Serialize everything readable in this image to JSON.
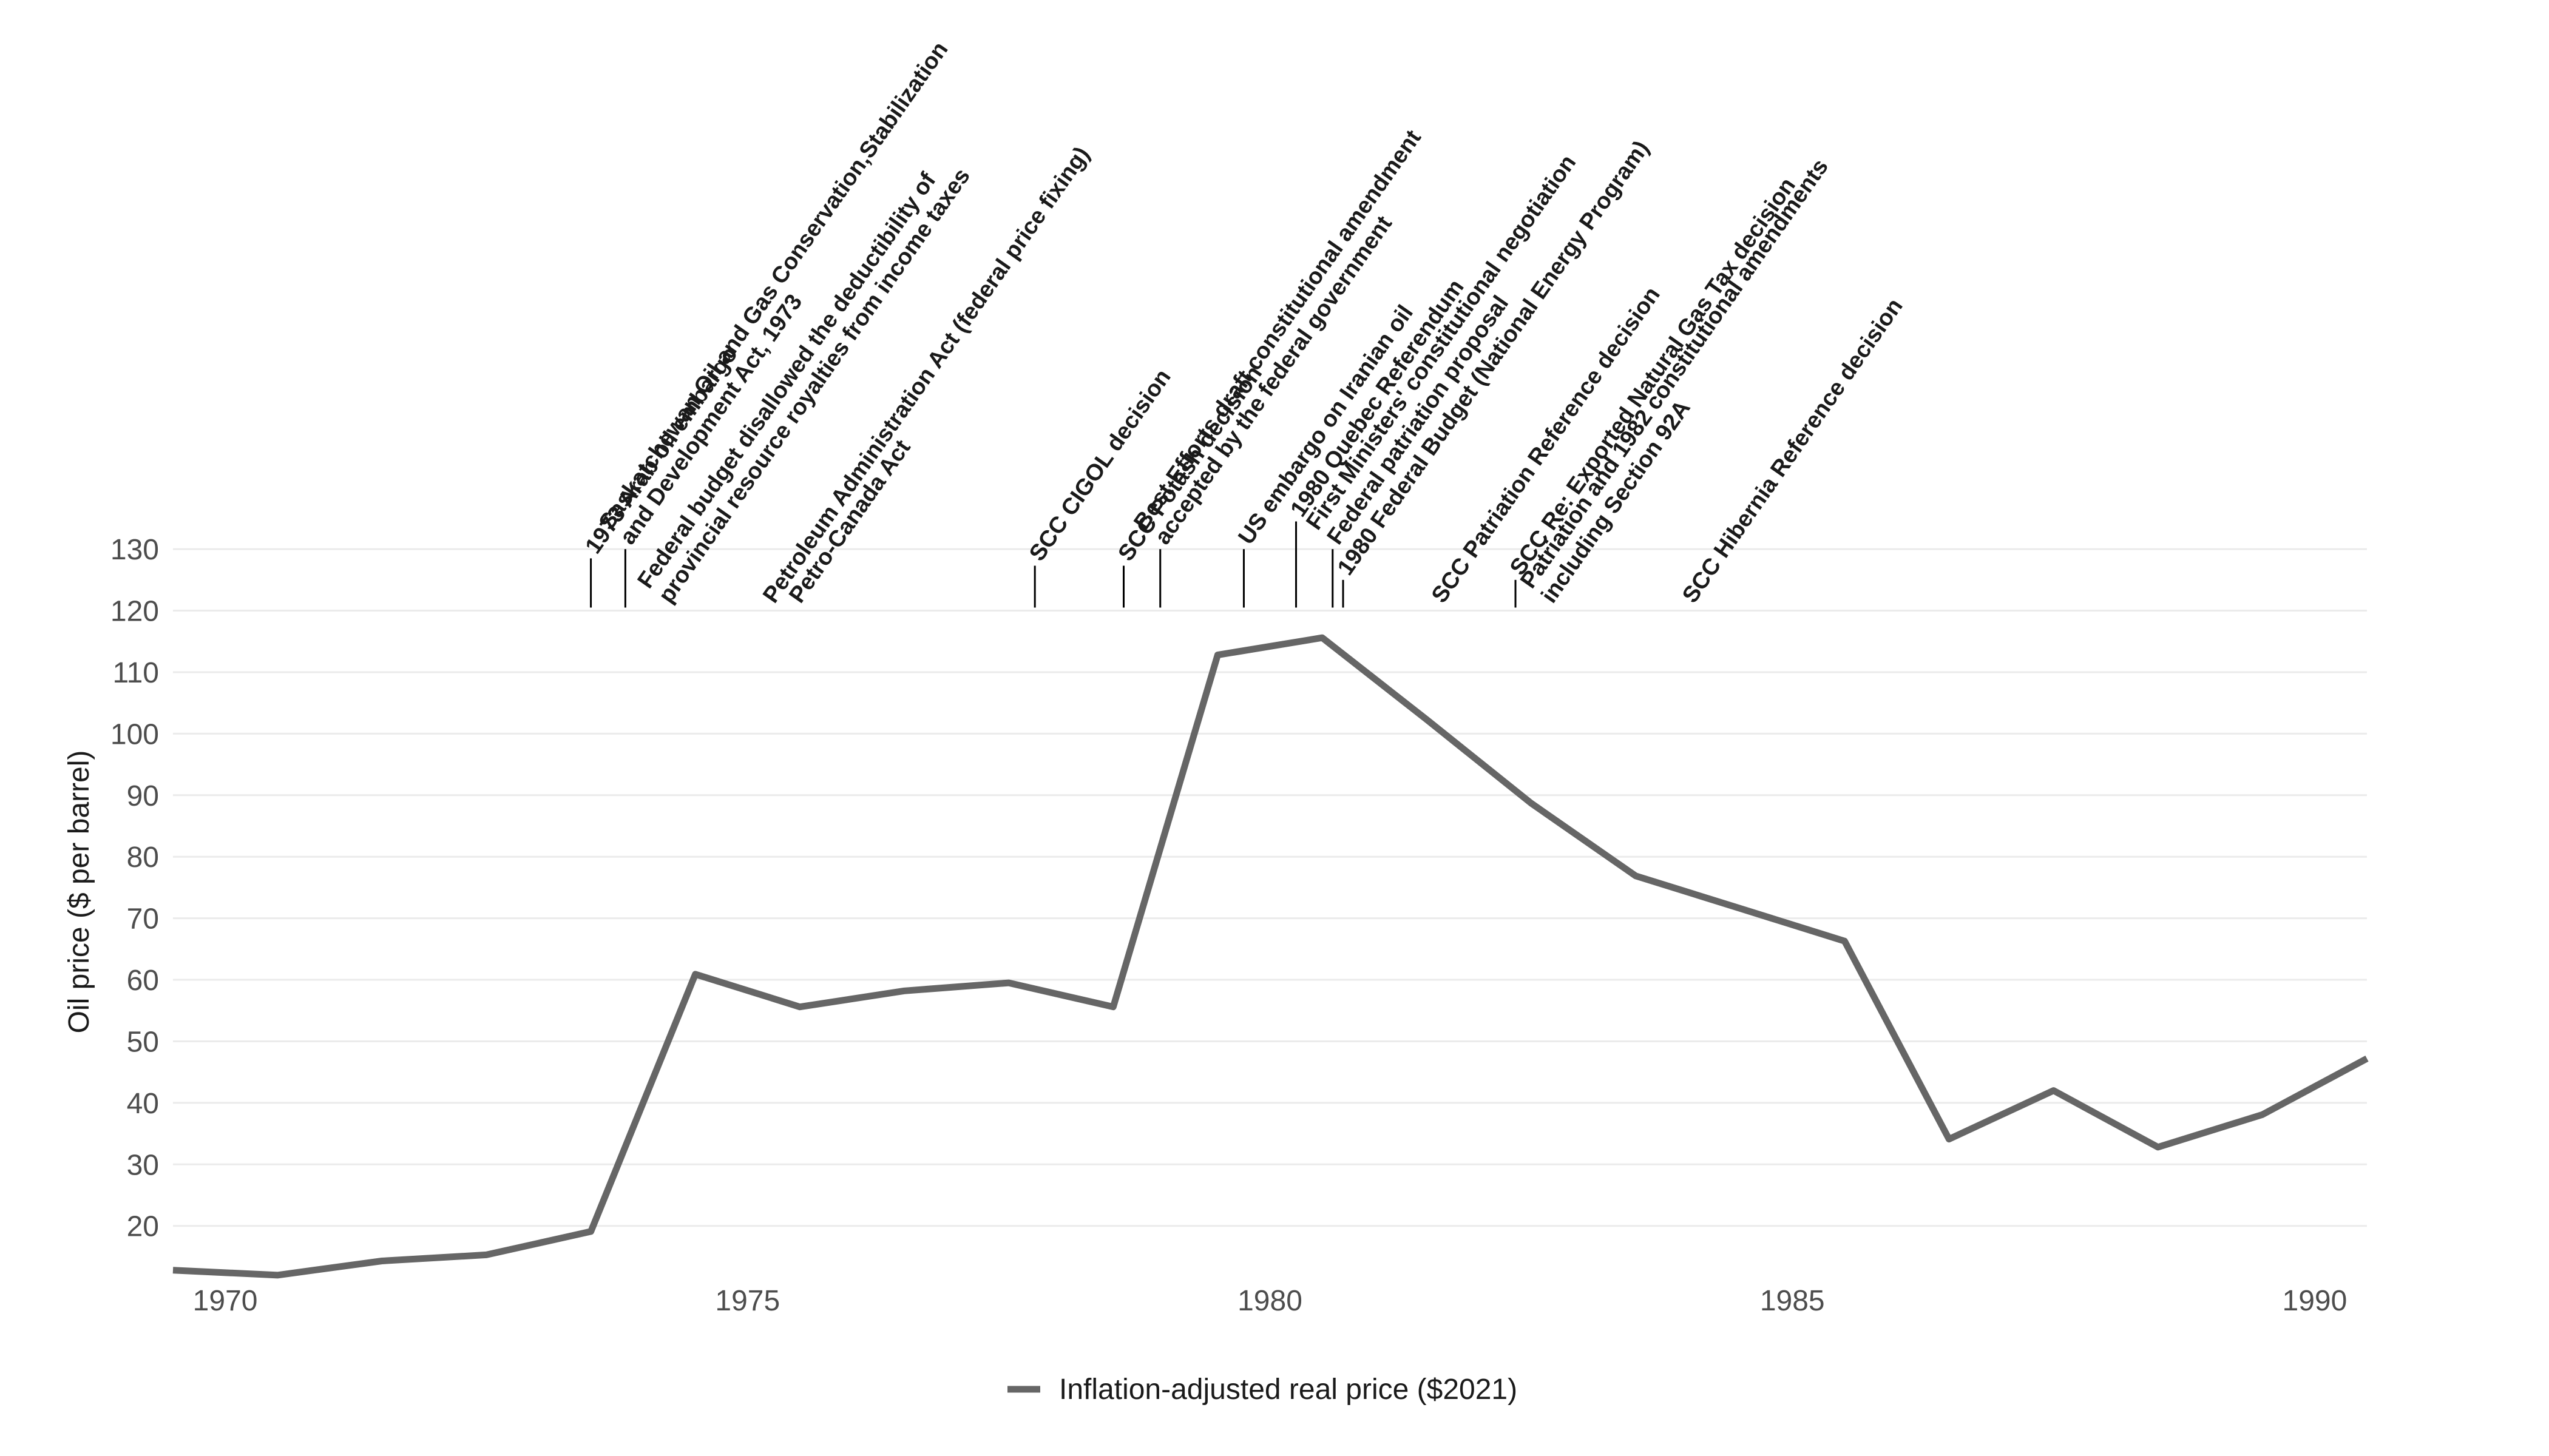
{
  "chart_data": {
    "type": "line",
    "title": "",
    "xlabel": "",
    "ylabel": "Oil price ($ per barrel)",
    "xlim": [
      1969.5,
      1990.5
    ],
    "ylim": [
      11,
      131
    ],
    "x_ticks": [
      1970,
      1975,
      1980,
      1985,
      1990
    ],
    "y_ticks": [
      20,
      30,
      40,
      50,
      60,
      70,
      80,
      90,
      100,
      110,
      120,
      130
    ],
    "grid": "horizontal",
    "legend_position": "bottom",
    "series": [
      {
        "name": "Inflation-adjusted real price ($2021)",
        "color": "#666666",
        "x": [
          1969.5,
          1970.5,
          1971.5,
          1972.5,
          1973.5,
          1974.5,
          1975.5,
          1976.5,
          1977.5,
          1978.5,
          1979.5,
          1980.5,
          1981.5,
          1982.5,
          1983.5,
          1984.5,
          1985.5,
          1986.5,
          1987.5,
          1988.5,
          1989.5,
          1990.5
        ],
        "y": [
          12.8,
          12.0,
          14.3,
          15.3,
          19.1,
          60.9,
          55.6,
          58.2,
          59.5,
          55.6,
          112.8,
          115.6,
          102.3,
          88.7,
          76.9,
          71.6,
          66.3,
          34.1,
          42.0,
          32.8,
          38.1,
          47.2
        ]
      }
    ],
    "annotations": [
      {
        "x": 1973.5,
        "label": "1973 Arab oil embargo",
        "line_top": 128.5
      },
      {
        "x": 1973.83,
        "label": "Saskatchewan Oil and Gas Conservation,Stabilization\nand Development Act, 1973",
        "line_top": 130.0
      },
      {
        "x": 1974.2,
        "label": "Federal budget disallowed the deductibility of\nprovincial resource royalties from income taxes",
        "line_top": 120.5
      },
      {
        "x": 1975.2,
        "label": "Petroleum Administration Act (federal price fixing)",
        "line_top": 120.5
      },
      {
        "x": 1975.45,
        "label": "Petro-Canada Act",
        "line_top": 120.5
      },
      {
        "x": 1977.75,
        "label": "SCC CIGOL decision",
        "line_top": 127.3
      },
      {
        "x": 1978.6,
        "label": "SCC Potash decision",
        "line_top": 127.3
      },
      {
        "x": 1978.95,
        "label": "Best Efforts draft constitutional amendment\naccepted by the federal government",
        "line_top": 130.0
      },
      {
        "x": 1979.75,
        "label": "US embargo on Iranian oil",
        "line_top": 130.0
      },
      {
        "x": 1980.25,
        "label": "1980 Quebec Referendum",
        "line_top": 134.5
      },
      {
        "x": 1980.6,
        "label": "First Ministers' constitutional negotiation\nFederal patriation proposal",
        "line_top": 130.0
      },
      {
        "x": 1980.7,
        "label": "1980 Federal Budget (National Energy Program)",
        "line_top": 125.0
      },
      {
        "x": 1981.6,
        "label": "SCC Patriation Reference decision",
        "line_top": 120.5
      },
      {
        "x": 1982.35,
        "label": "SCC Re: Exported Natural Gas Tax decision",
        "line_top": 125.0
      },
      {
        "x": 1982.65,
        "label": "Patriation and 1982 constitutional amendments\nincluding Section 92A",
        "line_top": 120.5
      },
      {
        "x": 1984.0,
        "label": "SCC Hibernia Reference decision",
        "line_top": 120.5
      }
    ]
  }
}
